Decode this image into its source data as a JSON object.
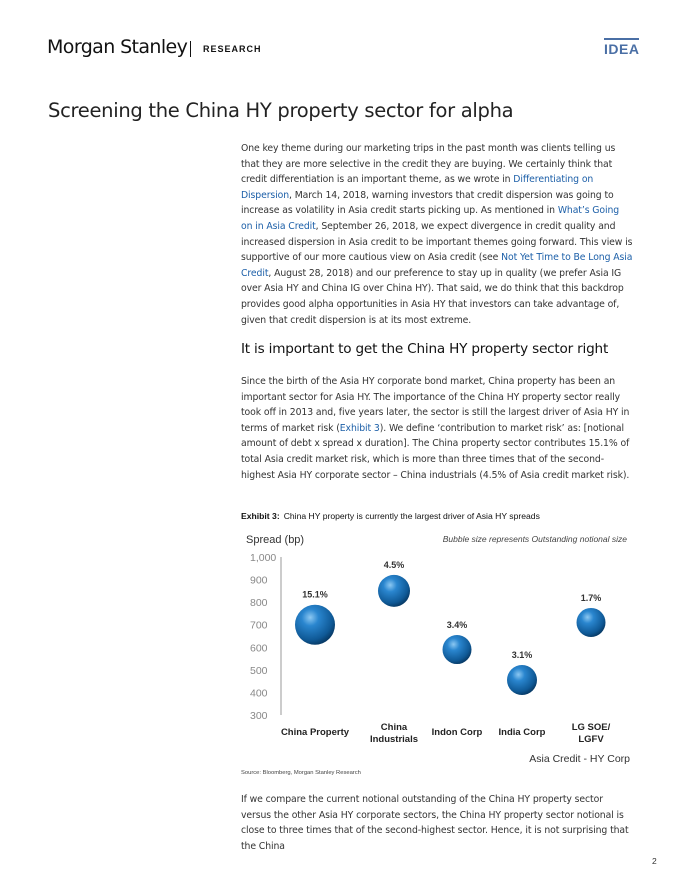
{
  "header": {
    "brand": "Morgan Stanley",
    "section": "RESEARCH",
    "badge": "IDEA"
  },
  "title": "Screening the China HY property sector for alpha",
  "intro": {
    "t1": "One key theme during our marketing trips in the past month was clients telling us that they are more selective in the credit they are buying. We certainly think that credit differentiation is an important theme, as we wrote in ",
    "link1": "Differentiating on Dispersion",
    "t2": ", March 14, 2018, warning investors that credit dispersion was going to increase as volatility in Asia credit starts picking up. As mentioned in ",
    "link2": "What’s Going on in Asia Credit",
    "t3": ", September 26, 2018, we expect divergence in credit quality and increased dispersion in Asia credit to be important themes going forward. This view is supportive of our more cautious view on Asia credit (see ",
    "link3": "Not Yet Time to Be Long Asia Credit",
    "t4": ", August 28, 2018) and our preference to stay up in quality (we prefer Asia IG over Asia HY and China IG over China HY). That said, we do think that this backdrop provides good alpha opportunities in Asia HY that investors can take advantage of, given that credit dispersion is at its most extreme."
  },
  "section_heading": "It is important to get the China HY property sector right",
  "body": {
    "t1": "Since the birth of the Asia HY corporate bond market, China property has been an important sector for Asia HY. The importance of the China HY property sector really took off in 2013 and, five years later, the sector is still the largest driver of Asia HY in terms of market risk (",
    "link1": "Exhibit 3",
    "t2": "). We define ‘contribution to market risk’ as: [notional amount of debt x spread x duration]. The China property sector contributes 15.1% of total Asia credit market risk, which is more than three times that of the second-highest Asia HY corporate sector – China industrials (4.5% of Asia credit market risk)."
  },
  "exhibit": {
    "label": "Exhibit 3:",
    "caption": "China HY property is currently the largest driver of Asia HY spreads",
    "source": "Source: Bloomberg, Morgan Stanley Research"
  },
  "chart_data": {
    "type": "scatter",
    "ylabel": "Spread (bp)",
    "note": "Bubble size represents Outstanding notional size",
    "xlabel": "Asia Credit - HY Corp",
    "ylim": [
      300,
      1000
    ],
    "yticks": [
      "1,000",
      "900",
      "800",
      "700",
      "600",
      "500",
      "400",
      "300"
    ],
    "categories": [
      "China Property",
      "China Industrials",
      "Indon Corp",
      "India Corp",
      "LG SOE/ LGFV"
    ],
    "points": [
      {
        "category": "China Property",
        "spread": 700,
        "label": "15.1%",
        "relative_size": 1.0
      },
      {
        "category": "China Industrials",
        "spread": 850,
        "label": "4.5%",
        "relative_size": 0.6
      },
      {
        "category": "Indon Corp",
        "spread": 590,
        "label": "3.4%",
        "relative_size": 0.45
      },
      {
        "category": "India Corp",
        "spread": 455,
        "label": "3.1%",
        "relative_size": 0.5
      },
      {
        "category": "LG SOE/ LGFV",
        "spread": 710,
        "label": "1.7%",
        "relative_size": 0.45
      }
    ],
    "bubble_color": "#1f77b4",
    "grid": false,
    "legend": "none"
  },
  "closing": {
    "text": "If we compare the current notional outstanding of the China HY property sector versus the other Asia HY corporate sectors, the China HY property sector notional is close to three times that of the second-highest sector. Hence, it is not surprising that the China"
  },
  "page_number": "2"
}
